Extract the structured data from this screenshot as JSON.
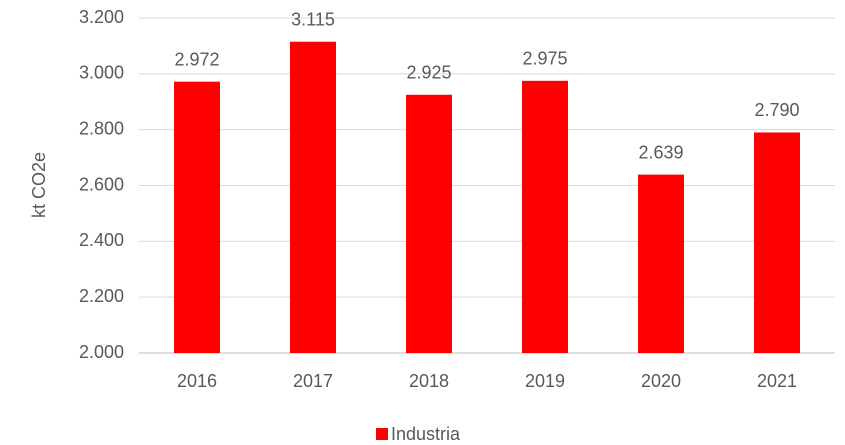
{
  "chart_data": {
    "type": "bar",
    "y_label": "kt CO2e",
    "categories": [
      "2016",
      "2017",
      "2018",
      "2019",
      "2020",
      "2021"
    ],
    "series": [
      {
        "name": "Industria",
        "color": "#ff0000",
        "values": [
          2972,
          3115,
          2925,
          2975,
          2639,
          2790
        ],
        "value_labels": [
          "2.972",
          "3.115",
          "2.925",
          "2.975",
          "2.639",
          "2.790"
        ]
      }
    ],
    "ylim": [
      2000,
      3200
    ],
    "yticks": [
      {
        "value": 2000,
        "label": "2.000"
      },
      {
        "value": 2200,
        "label": "2.200"
      },
      {
        "value": 2400,
        "label": "2.400"
      },
      {
        "value": 2600,
        "label": "2.600"
      },
      {
        "value": 2800,
        "label": "2.800"
      },
      {
        "value": 3000,
        "label": "3.000"
      },
      {
        "value": 3200,
        "label": "3.200"
      }
    ],
    "grid": true,
    "legend": "bottom"
  }
}
